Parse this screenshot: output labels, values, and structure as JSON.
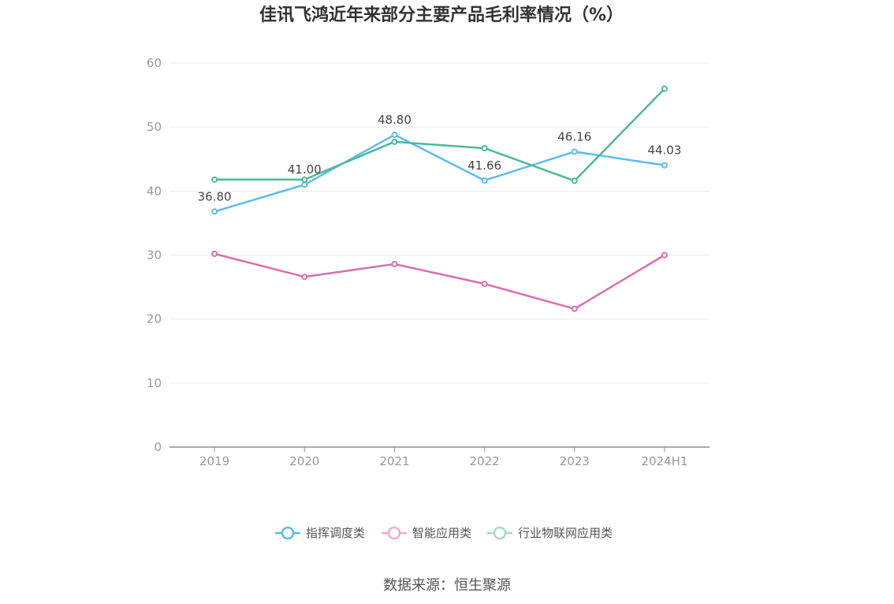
{
  "chart_data": {
    "type": "line",
    "title": "佳讯飞鸿近年来部分主要产品毛利率情况（%）",
    "categories": [
      "2019",
      "2020",
      "2021",
      "2022",
      "2023",
      "2024H1"
    ],
    "ylim": [
      0,
      60
    ],
    "yticks": [
      0,
      10,
      20,
      30,
      40,
      50,
      60
    ],
    "grid": true,
    "legend_position": "bottom",
    "series": [
      {
        "name": "指挥调度类",
        "color": "#5bbcec",
        "values": [
          36.8,
          41.0,
          48.8,
          41.66,
          46.16,
          44.03
        ],
        "labels": [
          "36.80",
          "41.00",
          "48.80",
          "41.66",
          "46.16",
          "44.03"
        ]
      },
      {
        "name": "智能应用类",
        "color": "#d96fb0",
        "values": [
          30.2,
          26.6,
          28.6,
          25.5,
          21.6,
          30.0
        ]
      },
      {
        "name": "行业物联网应用类",
        "color": "#4cb89a",
        "values": [
          41.8,
          41.8,
          47.7,
          46.7,
          41.6,
          56.0
        ]
      }
    ]
  },
  "legend_colors": [
    "#5bbcec",
    "#f2a9d4",
    "#a3dccb"
  ],
  "source": "数据来源：恒生聚源"
}
